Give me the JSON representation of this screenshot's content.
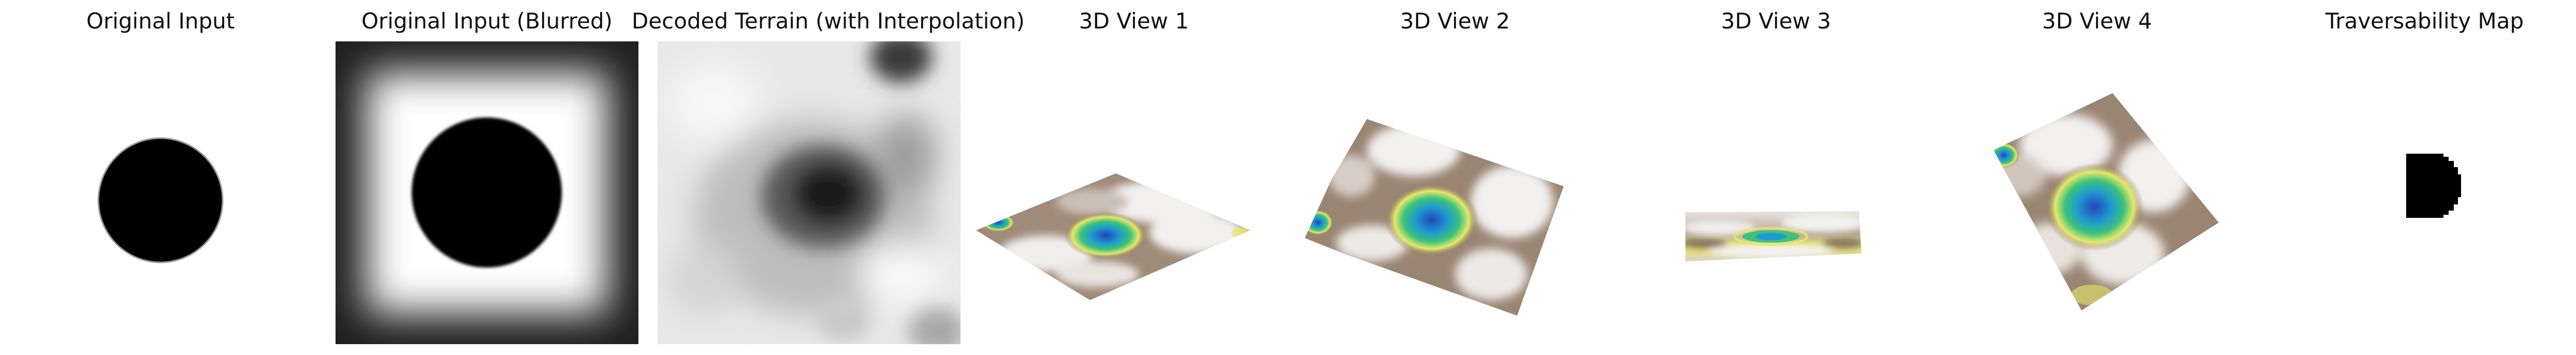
{
  "panels": [
    {
      "title": "Original Input",
      "icon": "black-circle-image"
    },
    {
      "title": "Original Input (Blurred)",
      "icon": "blurred-circle-image"
    },
    {
      "title": "Decoded Terrain (with Interpolation)",
      "icon": "decoded-terrain-image"
    },
    {
      "title": "3D View 1",
      "icon": "terrain-surface-3d"
    },
    {
      "title": "3D View 2",
      "icon": "terrain-surface-3d"
    },
    {
      "title": "3D View 3",
      "icon": "terrain-surface-3d"
    },
    {
      "title": "3D View 4",
      "icon": "terrain-surface-3d"
    },
    {
      "title": "Traversability Map",
      "icon": "traversability-mask"
    }
  ],
  "colors": {
    "background": "#ffffff",
    "terrain_high": "#f2f1f0",
    "terrain_mid": "#8a7361",
    "terrain_low_yellow": "#e6e86a",
    "terrain_low_green": "#3cc27a",
    "terrain_pit_blue": "#2346b8"
  }
}
